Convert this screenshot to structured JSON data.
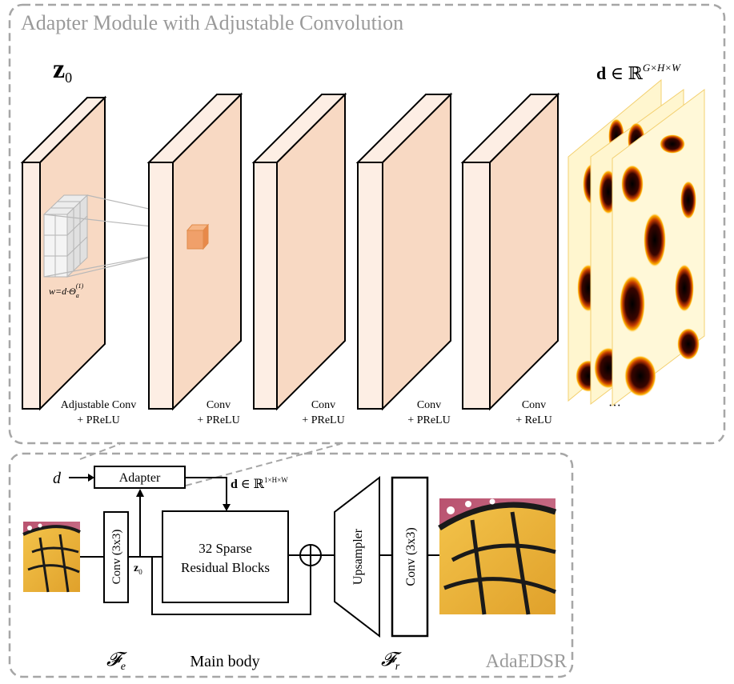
{
  "top_panel": {
    "title": "Adapter Module with Adjustable Convolution",
    "input_label": "z",
    "input_subscript": "0",
    "output_label_bold": "d",
    "output_label_rest": " ∈ ℝ",
    "output_superscript": "G×H×W",
    "kernel_formula": "w=d·Θ",
    "kernel_sub": "a",
    "kernel_sup": "(1)",
    "ellipsis": "···",
    "layers": [
      {
        "line1": "Adjustable Conv",
        "line2": "+ PReLU"
      },
      {
        "line1": "Conv",
        "line2": "+ PReLU"
      },
      {
        "line1": "Conv",
        "line2": "+ PReLU"
      },
      {
        "line1": "Conv",
        "line2": "+ PReLU"
      },
      {
        "line1": "Conv",
        "line2": "+ ReLU"
      }
    ]
  },
  "bottom_panel": {
    "d_input": "d",
    "adapter_label": "Adapter",
    "d_vector_bold": "d",
    "d_vector_rest": " ∈ ℝ",
    "d_vector_sup": "1×H×W",
    "conv_e_label": "Conv (3x3)",
    "z0_label": "z",
    "z0_sub": "0",
    "residual_line1": "32 Sparse",
    "residual_line2": "Residual Blocks",
    "upsampler_label": "Upsampler",
    "conv_r_label": "Conv (3x3)",
    "fe_label": "𝓕",
    "fe_sub": "e",
    "main_body_label": "Main body",
    "fr_label": "𝓕",
    "fr_sub": "r",
    "model_name": "AdaEDSR"
  },
  "colors": {
    "panel_border": "#a6a6a6",
    "layer_face": "#f8d9c3",
    "layer_front": "#fdeee4",
    "kernel_orange": "#f0a06a",
    "title_gray": "#9a9a9a"
  }
}
